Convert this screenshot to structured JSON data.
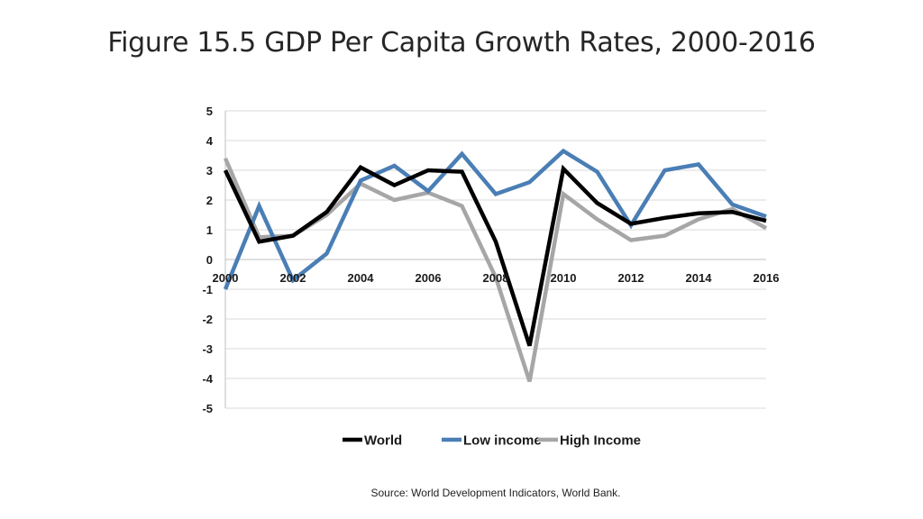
{
  "slide": {
    "title": "Figure 15.5 GDP Per Capita Growth Rates, 2000-2016",
    "source": "Source: World Development Indicators, World Bank."
  },
  "chart_data": {
    "type": "line",
    "title": "Figure 15.5 GDP Per Capita Growth Rates, 2000-2016",
    "xlabel": "",
    "ylabel": "",
    "x": [
      2000,
      2001,
      2002,
      2003,
      2004,
      2005,
      2006,
      2007,
      2008,
      2009,
      2010,
      2011,
      2012,
      2013,
      2014,
      2015,
      2016
    ],
    "xticks": [
      "2000",
      "2002",
      "2004",
      "2006",
      "2008",
      "2010",
      "2012",
      "2014",
      "2016"
    ],
    "yticks": [
      "5",
      "4",
      "3",
      "2",
      "1",
      "0",
      "-1",
      "-2",
      "-3",
      "-4",
      "-5"
    ],
    "ylim": [
      -5,
      5
    ],
    "xlim": [
      2000,
      2016
    ],
    "grid": true,
    "legend_position": "bottom",
    "series": [
      {
        "name": "World",
        "color": "#000000",
        "values": [
          3.0,
          0.6,
          0.8,
          1.6,
          3.1,
          2.5,
          3.0,
          2.95,
          0.6,
          -2.9,
          3.05,
          1.9,
          1.2,
          1.4,
          1.55,
          1.6,
          1.3
        ]
      },
      {
        "name": "Low income",
        "color": "#4a7eb5",
        "values": [
          -1.0,
          1.8,
          -0.7,
          0.2,
          2.65,
          3.15,
          2.3,
          3.55,
          2.2,
          2.6,
          3.65,
          2.95,
          1.15,
          3.0,
          3.2,
          1.85,
          1.45
        ]
      },
      {
        "name": "High Income",
        "color": "#a6a6a6",
        "values": [
          3.4,
          0.75,
          0.8,
          1.5,
          2.55,
          2.0,
          2.25,
          1.8,
          -0.6,
          -4.1,
          2.2,
          1.35,
          0.65,
          0.8,
          1.35,
          1.7,
          1.05
        ]
      }
    ]
  }
}
